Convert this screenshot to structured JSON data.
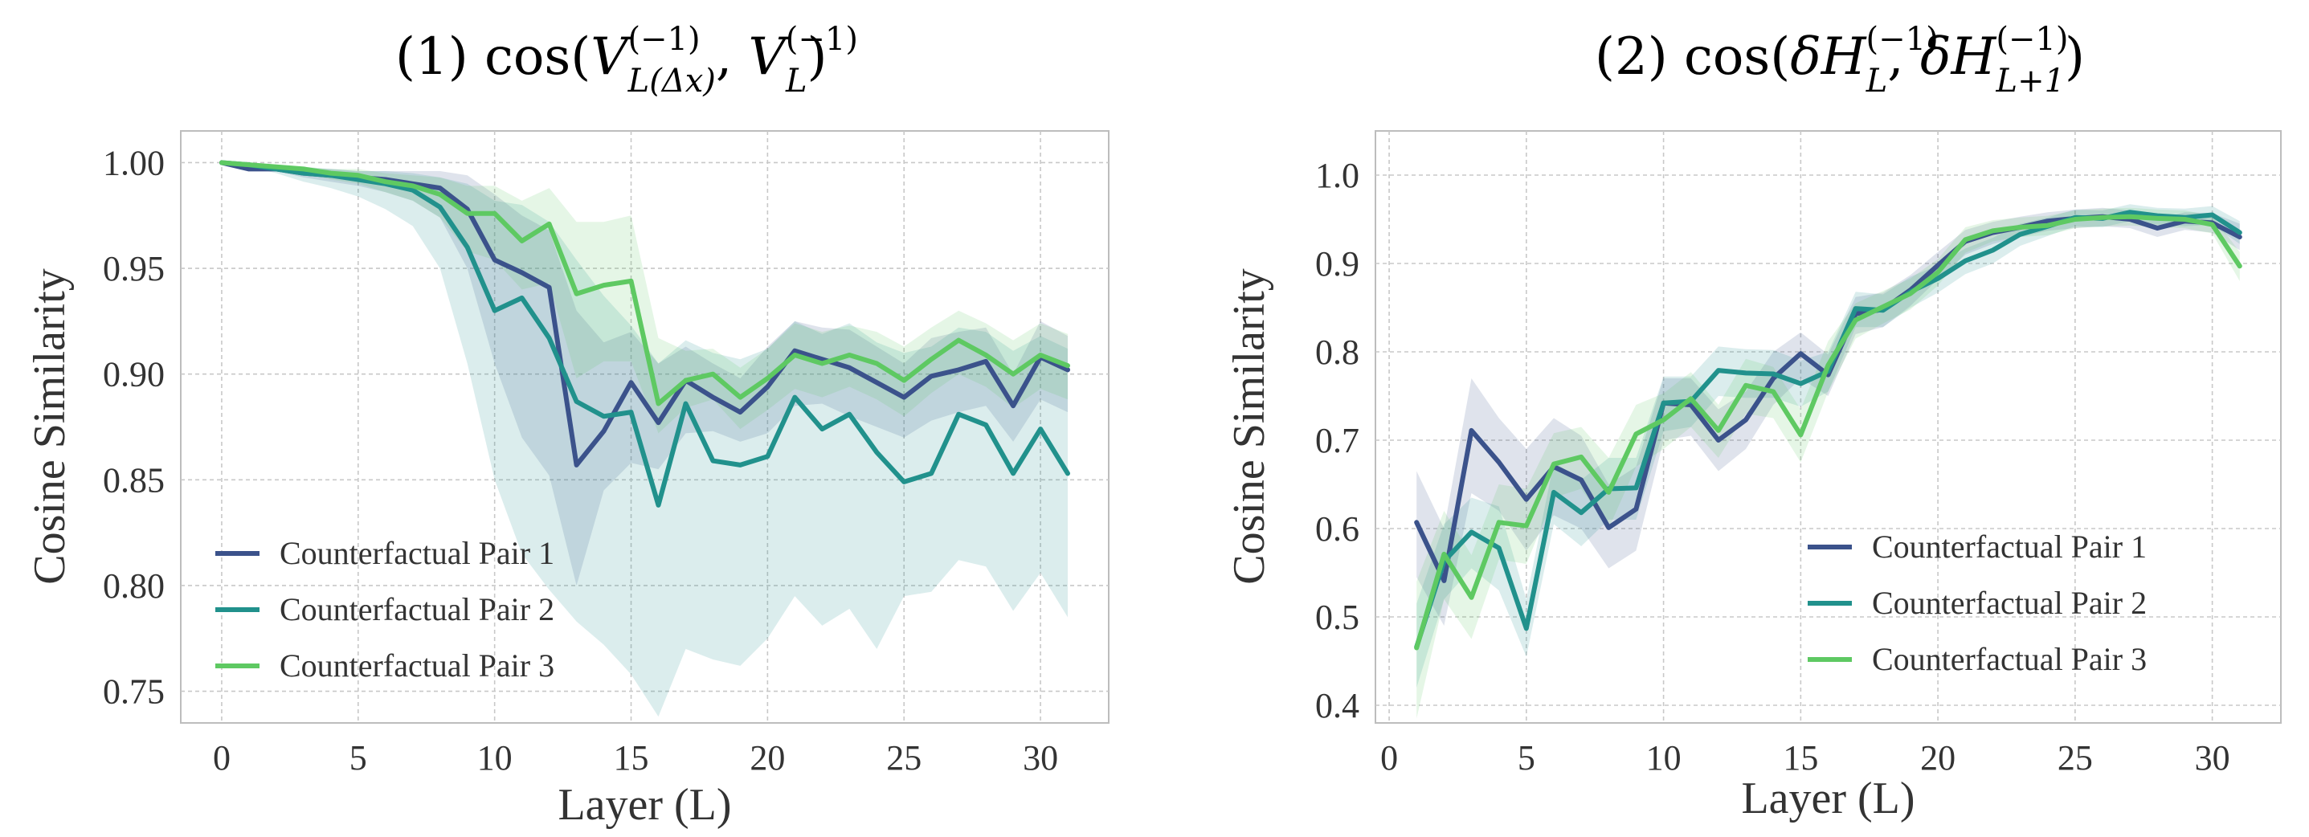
{
  "colors": {
    "pair1": "#3b528b",
    "pair2": "#21918c",
    "pair3": "#5ec962"
  },
  "chart_data": [
    {
      "type": "line",
      "title_parts": {
        "prefix": "(1)",
        "func": "cos",
        "arg1": "V",
        "sup1": "(−1)",
        "sub1": "L(Δx)",
        "comma": ",",
        "arg2": "V",
        "sup2": "(−1)",
        "sub2": "L"
      },
      "xlabel": "Layer (L)",
      "ylabel": "Cosine Similarity",
      "xlim": [
        -1.5,
        32.5
      ],
      "ylim": [
        0.735,
        1.015
      ],
      "xticks": [
        0,
        5,
        10,
        15,
        20,
        25,
        30
      ],
      "yticks": [
        0.75,
        0.8,
        0.85,
        0.9,
        0.95,
        1.0
      ],
      "ytick_labels": [
        "0.75",
        "0.80",
        "0.85",
        "0.90",
        "0.95",
        "1.00"
      ],
      "grid": true,
      "legend_position": "lower-left",
      "x": [
        0,
        1,
        2,
        3,
        4,
        5,
        6,
        7,
        8,
        9,
        10,
        11,
        12,
        13,
        14,
        15,
        16,
        17,
        18,
        19,
        20,
        21,
        22,
        23,
        24,
        25,
        26,
        27,
        28,
        29,
        30,
        31
      ],
      "series": [
        {
          "name": "Counterfactual Pair 1",
          "color_key": "pair1",
          "values": [
            1.0,
            0.997,
            0.997,
            0.995,
            0.994,
            0.993,
            0.992,
            0.99,
            0.988,
            0.978,
            0.954,
            0.948,
            0.941,
            0.857,
            0.873,
            0.896,
            0.877,
            0.897,
            0.889,
            0.882,
            0.894,
            0.911,
            0.907,
            0.903,
            0.896,
            0.889,
            0.899,
            0.902,
            0.906,
            0.885,
            0.908,
            0.902
          ],
          "lower": [
            1.0,
            0.996,
            0.996,
            0.993,
            0.991,
            0.989,
            0.986,
            0.982,
            0.974,
            0.95,
            0.905,
            0.87,
            0.852,
            0.8,
            0.845,
            0.858,
            0.855,
            0.872,
            0.873,
            0.868,
            0.872,
            0.885,
            0.886,
            0.88,
            0.875,
            0.87,
            0.878,
            0.882,
            0.885,
            0.868,
            0.888,
            0.882
          ],
          "upper": [
            1.0,
            0.998,
            0.998,
            0.997,
            0.997,
            0.996,
            0.996,
            0.996,
            0.996,
            0.994,
            0.985,
            0.975,
            0.968,
            0.93,
            0.915,
            0.92,
            0.905,
            0.913,
            0.905,
            0.898,
            0.913,
            0.925,
            0.922,
            0.921,
            0.913,
            0.905,
            0.917,
            0.92,
            0.922,
            0.9,
            0.925,
            0.918
          ]
        },
        {
          "name": "Counterfactual Pair 2",
          "color_key": "pair2",
          "values": [
            1.0,
            0.999,
            0.997,
            0.995,
            0.994,
            0.992,
            0.99,
            0.987,
            0.979,
            0.96,
            0.93,
            0.936,
            0.917,
            0.887,
            0.88,
            0.882,
            0.838,
            0.886,
            0.859,
            0.857,
            0.861,
            0.889,
            0.874,
            0.881,
            0.863,
            0.849,
            0.853,
            0.881,
            0.876,
            0.853,
            0.874,
            0.853
          ],
          "lower": [
            1.0,
            0.998,
            0.995,
            0.991,
            0.988,
            0.984,
            0.978,
            0.97,
            0.95,
            0.905,
            0.85,
            0.815,
            0.798,
            0.783,
            0.772,
            0.758,
            0.738,
            0.77,
            0.765,
            0.762,
            0.775,
            0.795,
            0.781,
            0.789,
            0.77,
            0.795,
            0.797,
            0.812,
            0.809,
            0.788,
            0.806,
            0.785
          ],
          "upper": [
            1.0,
            0.999,
            0.999,
            0.998,
            0.997,
            0.996,
            0.996,
            0.995,
            0.993,
            0.99,
            0.982,
            0.98,
            0.972,
            0.954,
            0.937,
            0.923,
            0.905,
            0.916,
            0.91,
            0.907,
            0.912,
            0.925,
            0.919,
            0.924,
            0.915,
            0.91,
            0.913,
            0.922,
            0.92,
            0.911,
            0.918,
            0.912
          ]
        },
        {
          "name": "Counterfactual Pair 3",
          "color_key": "pair3",
          "values": [
            1.0,
            0.999,
            0.998,
            0.997,
            0.995,
            0.994,
            0.991,
            0.989,
            0.985,
            0.976,
            0.976,
            0.963,
            0.971,
            0.938,
            0.942,
            0.944,
            0.886,
            0.897,
            0.9,
            0.889,
            0.898,
            0.909,
            0.905,
            0.909,
            0.905,
            0.897,
            0.907,
            0.916,
            0.909,
            0.9,
            0.909,
            0.904
          ],
          "lower": [
            1.0,
            0.998,
            0.997,
            0.995,
            0.992,
            0.99,
            0.986,
            0.982,
            0.974,
            0.958,
            0.954,
            0.94,
            0.943,
            0.898,
            0.906,
            0.906,
            0.872,
            0.884,
            0.888,
            0.874,
            0.883,
            0.893,
            0.889,
            0.894,
            0.888,
            0.88,
            0.891,
            0.9,
            0.894,
            0.884,
            0.893,
            0.888
          ],
          "upper": [
            1.0,
            0.999,
            0.999,
            0.998,
            0.997,
            0.997,
            0.995,
            0.994,
            0.993,
            0.989,
            0.989,
            0.982,
            0.988,
            0.972,
            0.972,
            0.975,
            0.917,
            0.911,
            0.912,
            0.903,
            0.912,
            0.924,
            0.92,
            0.923,
            0.92,
            0.913,
            0.922,
            0.93,
            0.924,
            0.916,
            0.924,
            0.919
          ]
        }
      ]
    },
    {
      "type": "line",
      "title_parts": {
        "prefix": "(2)",
        "func": "cos",
        "arg1": "δH",
        "sup1": "(−1)",
        "sub1": "L",
        "comma": ",",
        "arg2": "δH",
        "sup2": "(−1)",
        "sub2": "L+1"
      },
      "xlabel": "Layer (L)",
      "ylabel": "Cosine Similarity",
      "xlim": [
        -0.5,
        32.5
      ],
      "ylim": [
        0.38,
        1.05
      ],
      "xticks": [
        0,
        5,
        10,
        15,
        20,
        25,
        30
      ],
      "yticks": [
        0.4,
        0.5,
        0.6,
        0.7,
        0.8,
        0.9,
        1.0
      ],
      "ytick_labels": [
        "0.4",
        "0.5",
        "0.6",
        "0.7",
        "0.8",
        "0.9",
        "1.0"
      ],
      "grid": true,
      "legend_position": "lower-right",
      "x": [
        1,
        2,
        3,
        4,
        5,
        6,
        7,
        8,
        9,
        10,
        11,
        12,
        13,
        14,
        15,
        16,
        17,
        18,
        19,
        20,
        21,
        22,
        23,
        24,
        25,
        26,
        27,
        28,
        29,
        30,
        31
      ],
      "series": [
        {
          "name": "Counterfactual Pair 1",
          "color_key": "pair1",
          "values": [
            0.607,
            0.541,
            0.711,
            0.675,
            0.633,
            0.67,
            0.655,
            0.601,
            0.622,
            0.742,
            0.74,
            0.7,
            0.723,
            0.77,
            0.798,
            0.774,
            0.843,
            0.848,
            0.87,
            0.898,
            0.925,
            0.935,
            0.941,
            0.948,
            0.951,
            0.953,
            0.95,
            0.94,
            0.948,
            0.946,
            0.93
          ],
          "lower": [
            0.545,
            0.49,
            0.64,
            0.62,
            0.575,
            0.615,
            0.6,
            0.555,
            0.575,
            0.7,
            0.705,
            0.665,
            0.69,
            0.74,
            0.77,
            0.75,
            0.82,
            0.828,
            0.852,
            0.882,
            0.91,
            0.922,
            0.93,
            0.937,
            0.94,
            0.942,
            0.94,
            0.93,
            0.938,
            0.935,
            0.915
          ],
          "upper": [
            0.665,
            0.6,
            0.77,
            0.725,
            0.69,
            0.725,
            0.705,
            0.65,
            0.67,
            0.77,
            0.77,
            0.735,
            0.755,
            0.8,
            0.822,
            0.797,
            0.862,
            0.867,
            0.887,
            0.913,
            0.938,
            0.947,
            0.953,
            0.958,
            0.961,
            0.963,
            0.96,
            0.95,
            0.958,
            0.957,
            0.945
          ]
        },
        {
          "name": "Counterfactual Pair 2",
          "color_key": "pair2",
          "values": [
            0.466,
            0.563,
            0.596,
            0.578,
            0.487,
            0.641,
            0.618,
            0.645,
            0.646,
            0.742,
            0.744,
            0.779,
            0.776,
            0.775,
            0.764,
            0.778,
            0.849,
            0.847,
            0.868,
            0.883,
            0.903,
            0.915,
            0.933,
            0.942,
            0.952,
            0.951,
            0.958,
            0.954,
            0.952,
            0.955,
            0.935
          ],
          "lower": [
            0.42,
            0.52,
            0.555,
            0.53,
            0.455,
            0.605,
            0.58,
            0.61,
            0.61,
            0.71,
            0.715,
            0.75,
            0.748,
            0.748,
            0.738,
            0.755,
            0.828,
            0.828,
            0.85,
            0.867,
            0.888,
            0.9,
            0.92,
            0.931,
            0.942,
            0.941,
            0.948,
            0.944,
            0.942,
            0.944,
            0.922
          ],
          "upper": [
            0.515,
            0.605,
            0.635,
            0.625,
            0.52,
            0.675,
            0.655,
            0.68,
            0.68,
            0.772,
            0.772,
            0.806,
            0.803,
            0.802,
            0.79,
            0.8,
            0.868,
            0.865,
            0.885,
            0.898,
            0.917,
            0.929,
            0.945,
            0.952,
            0.961,
            0.96,
            0.967,
            0.963,
            0.962,
            0.965,
            0.948
          ]
        },
        {
          "name": "Counterfactual Pair 3",
          "color_key": "pair3",
          "values": [
            0.465,
            0.571,
            0.522,
            0.607,
            0.603,
            0.673,
            0.681,
            0.641,
            0.707,
            0.723,
            0.747,
            0.711,
            0.762,
            0.755,
            0.706,
            0.785,
            0.836,
            0.851,
            0.866,
            0.89,
            0.927,
            0.937,
            0.941,
            0.943,
            0.95,
            0.952,
            0.953,
            0.951,
            0.95,
            0.944,
            0.897
          ],
          "lower": [
            0.385,
            0.52,
            0.475,
            0.565,
            0.56,
            0.635,
            0.645,
            0.6,
            0.67,
            0.69,
            0.715,
            0.68,
            0.73,
            0.725,
            0.675,
            0.755,
            0.815,
            0.832,
            0.848,
            0.875,
            0.912,
            0.925,
            0.93,
            0.932,
            0.94,
            0.942,
            0.943,
            0.941,
            0.94,
            0.934,
            0.88
          ],
          "upper": [
            0.54,
            0.62,
            0.57,
            0.65,
            0.645,
            0.708,
            0.715,
            0.68,
            0.74,
            0.753,
            0.777,
            0.74,
            0.792,
            0.783,
            0.735,
            0.812,
            0.855,
            0.869,
            0.883,
            0.905,
            0.941,
            0.949,
            0.952,
            0.954,
            0.96,
            0.962,
            0.963,
            0.961,
            0.96,
            0.954,
            0.913
          ]
        }
      ]
    }
  ]
}
